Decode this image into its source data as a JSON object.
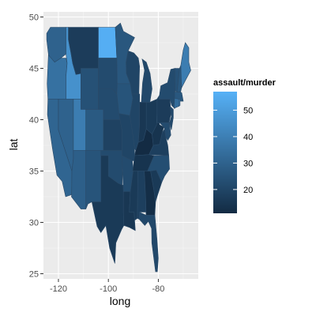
{
  "chart_data": {
    "type": "choropleth",
    "xlabel": "long",
    "ylabel": "lat",
    "xlim": [
      -126,
      -64
    ],
    "ylim": [
      24.5,
      50.5
    ],
    "x_ticks": [
      -120,
      -100,
      -80
    ],
    "y_ticks": [
      25,
      30,
      35,
      40,
      45,
      50
    ],
    "grid": true,
    "panel_background": "#ebebeb",
    "grid_color": "#ffffff",
    "legend": {
      "title": "assault/murder",
      "position": "right",
      "breaks": [
        20,
        30,
        40,
        50
      ],
      "range": [
        11,
        57
      ],
      "low_color": "#132b43",
      "high_color": "#56b1f7"
    },
    "regions": [
      {
        "name": "washington",
        "value": 30
      },
      {
        "name": "oregon",
        "value": 35
      },
      {
        "name": "california",
        "value": 31
      },
      {
        "name": "idaho",
        "value": 46
      },
      {
        "name": "nevada",
        "value": 30
      },
      {
        "name": "montana",
        "value": 17
      },
      {
        "name": "wyoming",
        "value": 24
      },
      {
        "name": "utah",
        "value": 39
      },
      {
        "name": "arizona",
        "value": 29
      },
      {
        "name": "colorado",
        "value": 27
      },
      {
        "name": "new mexico",
        "value": 25
      },
      {
        "name": "north dakota",
        "value": 56
      },
      {
        "name": "south dakota",
        "value": 22
      },
      {
        "name": "nebraska",
        "value": 22
      },
      {
        "name": "kansas",
        "value": 19
      },
      {
        "name": "oklahoma",
        "value": 22
      },
      {
        "name": "texas",
        "value": 16
      },
      {
        "name": "minnesota",
        "value": 26
      },
      {
        "name": "iowa",
        "value": 25
      },
      {
        "name": "missouri",
        "value": 20
      },
      {
        "name": "arkansas",
        "value": 22
      },
      {
        "name": "louisiana",
        "value": 15
      },
      {
        "name": "wisconsin",
        "value": 20
      },
      {
        "name": "illinois",
        "value": 20
      },
      {
        "name": "michigan",
        "value": 21
      },
      {
        "name": "indiana",
        "value": 15
      },
      {
        "name": "ohio",
        "value": 16
      },
      {
        "name": "kentucky",
        "value": 11
      },
      {
        "name": "tennessee",
        "value": 14
      },
      {
        "name": "mississippi",
        "value": 16
      },
      {
        "name": "alabama",
        "value": 18
      },
      {
        "name": "georgia",
        "value": 12
      },
      {
        "name": "florida",
        "value": 21
      },
      {
        "name": "south carolina",
        "value": 16
      },
      {
        "name": "north carolina",
        "value": 23
      },
      {
        "name": "virginia",
        "value": 18
      },
      {
        "name": "west virginia",
        "value": 14
      },
      {
        "name": "pennsylvania",
        "value": 17
      },
      {
        "name": "new york",
        "value": 22
      },
      {
        "name": "vermont",
        "value": 24
      },
      {
        "name": "new hampshire",
        "value": 26
      },
      {
        "name": "maine",
        "value": 39
      },
      {
        "name": "massachusetts",
        "value": 26
      },
      {
        "name": "connecticut",
        "value": 33
      },
      {
        "name": "rhode island",
        "value": 38
      },
      {
        "name": "new jersey",
        "value": 21
      },
      {
        "name": "delaware",
        "value": 25
      },
      {
        "name": "maryland",
        "value": 22
      }
    ]
  }
}
